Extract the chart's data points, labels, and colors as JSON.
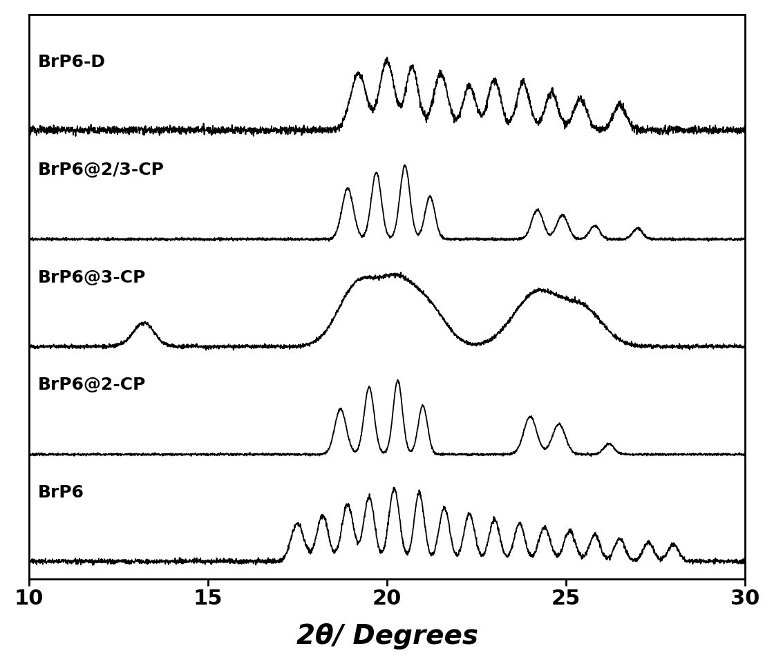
{
  "xlim": [
    10,
    30
  ],
  "xlabel": "2θ/ Degrees",
  "xlabel_fontsize": 28,
  "tick_fontsize": 22,
  "tick_major": [
    10,
    15,
    20,
    25,
    30
  ],
  "labels": [
    "BrP6-D",
    "BrP6@2/3-CP",
    "BrP6@3-CP",
    "BrP6@2-CP",
    "BrP6"
  ],
  "offsets": [
    4.0,
    3.0,
    2.0,
    1.0,
    0.0
  ],
  "line_color": "#000000",
  "background_color": "#ffffff",
  "line_width": 1.3,
  "label_fontsize": 18
}
